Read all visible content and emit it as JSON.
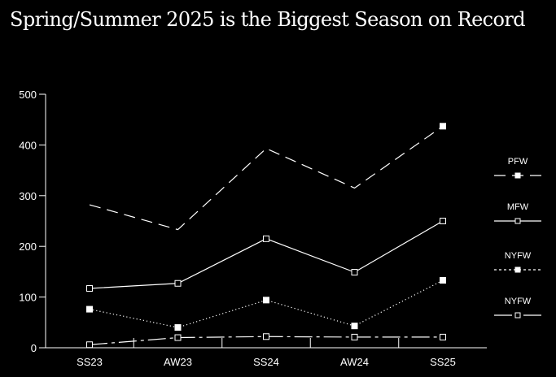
{
  "chart_data": {
    "type": "line",
    "title": "Spring/Summer 2025 is the Biggest Season on Record",
    "xlabel": "",
    "ylabel": "",
    "categories": [
      "SS23",
      "AW23",
      "SS24",
      "AW24",
      "SS25"
    ],
    "ylim": [
      0,
      500
    ],
    "yticks": [
      0,
      100,
      200,
      300,
      400,
      500
    ],
    "grid": false,
    "legend_position": "right",
    "series": [
      {
        "name": "PFW",
        "values": [
          282,
          233,
          393,
          315,
          437
        ],
        "line_style": "long-dash",
        "marker": "filled-square",
        "marker_on": [
          4
        ],
        "color": "#ffffff"
      },
      {
        "name": "MFW",
        "values": [
          117,
          127,
          215,
          149,
          250
        ],
        "line_style": "solid",
        "marker": "hollow-square",
        "marker_on": [
          0,
          1,
          2,
          3,
          4
        ],
        "color": "#ffffff"
      },
      {
        "name": "NYFW",
        "values": [
          76,
          40,
          94,
          43,
          133
        ],
        "line_style": "dotted",
        "marker": "filled-square",
        "marker_on": [
          0,
          1,
          2,
          3,
          4
        ],
        "color": "#ffffff"
      },
      {
        "name": "NYFW",
        "values": [
          6,
          20,
          22,
          21,
          21
        ],
        "line_style": "dash-dot",
        "marker": "hollow-square",
        "marker_on": [
          0,
          1,
          2,
          3,
          4
        ],
        "color": "#ffffff"
      }
    ]
  }
}
